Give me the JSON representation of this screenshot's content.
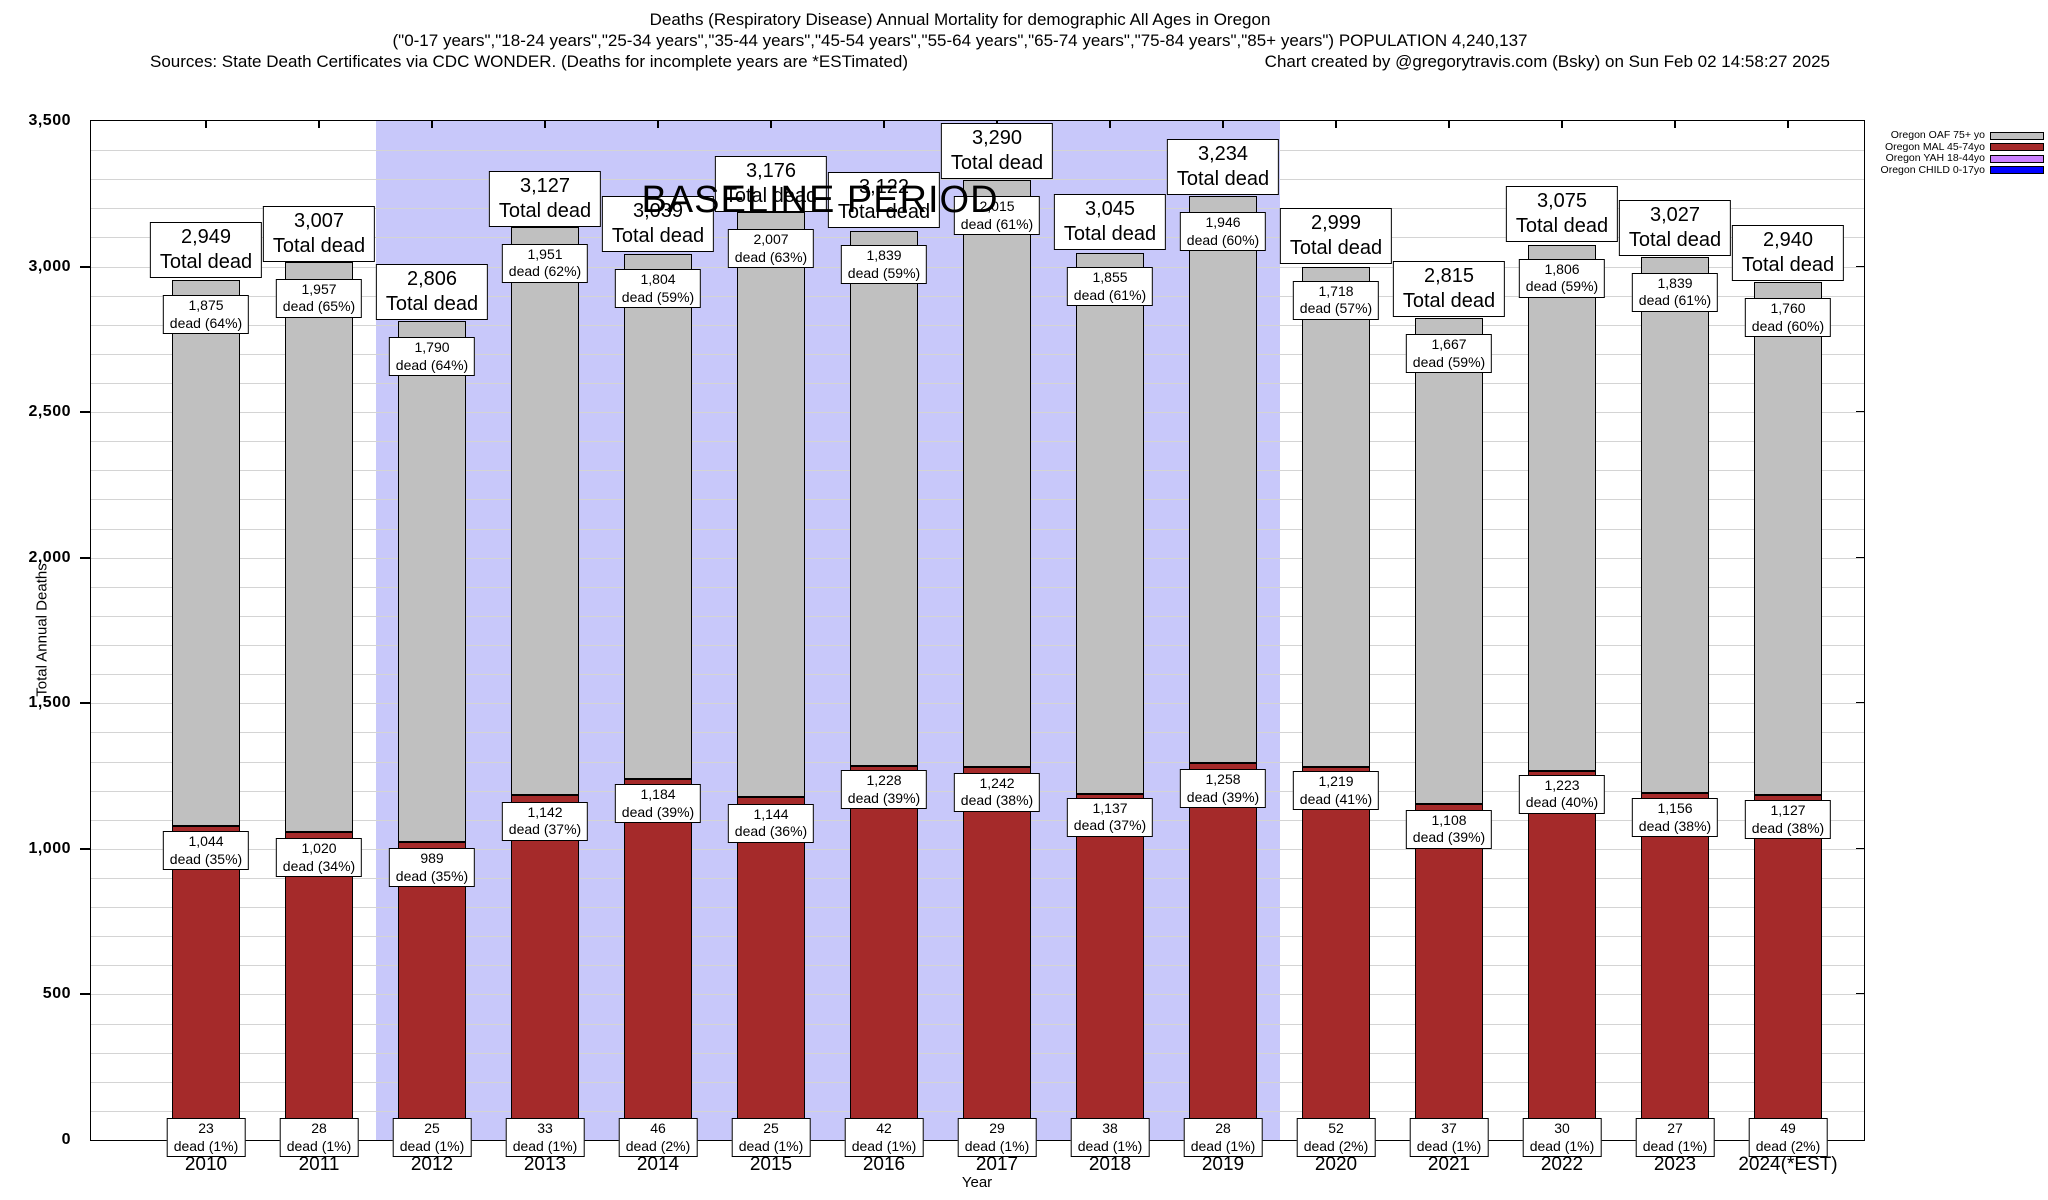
{
  "header": {
    "line1": "Deaths (Respiratory Disease) Annual Mortality for demographic All Ages in Oregon",
    "line2": "(\"0-17 years\",\"18-24 years\",\"25-34 years\",\"35-44 years\",\"45-54 years\",\"55-64 years\",\"65-74 years\",\"75-84 years\",\"85+ years\") POPULATION 4,240,137",
    "sources": "Sources: State Death Certificates via CDC WONDER. (Deaths for incomplete years are *ESTimated)",
    "credit": "Chart created by @gregorytravis.com (Bsky) on Sun Feb 02 14:58:27 2025"
  },
  "legend": [
    {
      "label": "Oregon OAF 75+ yo",
      "color": "#c0c0c0"
    },
    {
      "label": "Oregon MAL 45-74yo",
      "color": "#a52a2a"
    },
    {
      "label": "Oregon YAH 18-44yo",
      "color": "#cc80ff"
    },
    {
      "label": "Oregon CHILD 0-17yo",
      "color": "#0000ff"
    }
  ],
  "chart_data": {
    "type": "bar",
    "stacked": true,
    "title": "Deaths (Respiratory Disease) Annual Mortality for demographic All Ages in Oregon",
    "xlabel": "Year",
    "ylabel": "Total Annual Deaths",
    "ylim": [
      0,
      3500
    ],
    "ytick_labels": [
      "0",
      "500",
      "1,000",
      "1,500",
      "2,000",
      "2,500",
      "3,000",
      "3,500"
    ],
    "minor_grid_step": 100,
    "grid": true,
    "legend_position": "top-right",
    "total_label": "Total dead",
    "colors": {
      "oaf": "#c0c0c0",
      "mal": "#a52a2a",
      "yah": "#cc80ff",
      "child": "#0000ff",
      "band": "#c8c8fa"
    },
    "annotations": {
      "baseline_text": "BASELINE PERIOD",
      "baseline_years": [
        "2012",
        "2019"
      ]
    },
    "categories": [
      "2010",
      "2011",
      "2012",
      "2013",
      "2014",
      "2015",
      "2016",
      "2017",
      "2018",
      "2019",
      "2020",
      "2021",
      "2022",
      "2023",
      "2024(*EST)"
    ],
    "totals": [
      2949,
      3007,
      2806,
      3127,
      3039,
      3176,
      3122,
      3290,
      3045,
      3234,
      2999,
      2815,
      3075,
      3027,
      2940
    ],
    "series": [
      {
        "name": "Oregon OAF 75+ yo",
        "values": [
          1875,
          1957,
          1790,
          1951,
          1804,
          2007,
          1839,
          2015,
          1855,
          1946,
          1718,
          1667,
          1806,
          1839,
          1760
        ]
      },
      {
        "name": "Oregon MAL 45-74yo",
        "values": [
          1044,
          1020,
          989,
          1142,
          1184,
          1144,
          1228,
          1242,
          1137,
          1258,
          1219,
          1108,
          1223,
          1156,
          1127
        ]
      },
      {
        "name": "Oregon YAH 18-44yo",
        "values": [
          23,
          28,
          25,
          33,
          46,
          25,
          42,
          29,
          38,
          28,
          52,
          37,
          30,
          27,
          49
        ]
      },
      {
        "name": "Oregon CHILD 0-17yo",
        "derived": true,
        "values": [
          7,
          2,
          2,
          1,
          5,
          0,
          13,
          4,
          15,
          2,
          10,
          3,
          16,
          5,
          4
        ]
      }
    ],
    "bars": [
      {
        "year": "2010",
        "total": "2,949",
        "oaf": "1,875",
        "oaf_pct": "dead (64%)",
        "mal": "1,044",
        "mal_pct": "dead (35%)",
        "yah": "23",
        "yah_pct": "dead (1%)"
      },
      {
        "year": "2011",
        "total": "3,007",
        "oaf": "1,957",
        "oaf_pct": "dead (65%)",
        "mal": "1,020",
        "mal_pct": "dead (34%)",
        "yah": "28",
        "yah_pct": "dead (1%)"
      },
      {
        "year": "2012",
        "total": "2,806",
        "oaf": "1,790",
        "oaf_pct": "dead (64%)",
        "mal": "989",
        "mal_pct": "dead (35%)",
        "yah": "25",
        "yah_pct": "dead (1%)"
      },
      {
        "year": "2013",
        "total": "3,127",
        "oaf": "1,951",
        "oaf_pct": "dead (62%)",
        "mal": "1,142",
        "mal_pct": "dead (37%)",
        "yah": "33",
        "yah_pct": "dead (1%)"
      },
      {
        "year": "2014",
        "total": "3,039",
        "oaf": "1,804",
        "oaf_pct": "dead (59%)",
        "mal": "1,184",
        "mal_pct": "dead (39%)",
        "yah": "46",
        "yah_pct": "dead (2%)"
      },
      {
        "year": "2015",
        "total": "3,176",
        "oaf": "2,007",
        "oaf_pct": "dead (63%)",
        "mal": "1,144",
        "mal_pct": "dead (36%)",
        "yah": "25",
        "yah_pct": "dead (1%)"
      },
      {
        "year": "2016",
        "total": "3,122",
        "oaf": "1,839",
        "oaf_pct": "dead (59%)",
        "mal": "1,228",
        "mal_pct": "dead (39%)",
        "yah": "42",
        "yah_pct": "dead (1%)"
      },
      {
        "year": "2017",
        "total": "3,290",
        "oaf": "2,015",
        "oaf_pct": "dead (61%)",
        "mal": "1,242",
        "mal_pct": "dead (38%)",
        "yah": "29",
        "yah_pct": "dead (1%)"
      },
      {
        "year": "2018",
        "total": "3,045",
        "oaf": "1,855",
        "oaf_pct": "dead (61%)",
        "mal": "1,137",
        "mal_pct": "dead (37%)",
        "yah": "38",
        "yah_pct": "dead (1%)"
      },
      {
        "year": "2019",
        "total": "3,234",
        "oaf": "1,946",
        "oaf_pct": "dead (60%)",
        "mal": "1,258",
        "mal_pct": "dead (39%)",
        "yah": "28",
        "yah_pct": "dead (1%)"
      },
      {
        "year": "2020",
        "total": "2,999",
        "oaf": "1,718",
        "oaf_pct": "dead (57%)",
        "mal": "1,219",
        "mal_pct": "dead (41%)",
        "yah": "52",
        "yah_pct": "dead (2%)"
      },
      {
        "year": "2021",
        "total": "2,815",
        "oaf": "1,667",
        "oaf_pct": "dead (59%)",
        "mal": "1,108",
        "mal_pct": "dead (39%)",
        "yah": "37",
        "yah_pct": "dead (1%)"
      },
      {
        "year": "2022",
        "total": "3,075",
        "oaf": "1,806",
        "oaf_pct": "dead (59%)",
        "mal": "1,223",
        "mal_pct": "dead (40%)",
        "yah": "30",
        "yah_pct": "dead (1%)"
      },
      {
        "year": "2023",
        "total": "3,027",
        "oaf": "1,839",
        "oaf_pct": "dead (61%)",
        "mal": "1,156",
        "mal_pct": "dead (38%)",
        "yah": "27",
        "yah_pct": "dead (1%)"
      },
      {
        "year": "2024(*EST)",
        "total": "2,940",
        "oaf": "1,760",
        "oaf_pct": "dead (60%)",
        "mal": "1,127",
        "mal_pct": "dead (38%)",
        "yah": "49",
        "yah_pct": "dead (2%)"
      }
    ]
  }
}
